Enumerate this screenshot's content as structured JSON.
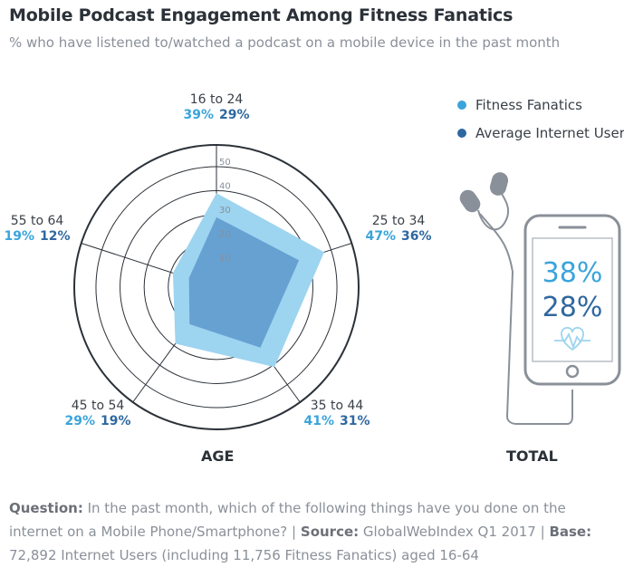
{
  "title": "Mobile Podcast Engagement Among Fitness Fanatics",
  "subtitle": "% who have listened to/watched a podcast on a mobile device in the past month",
  "chart_data": {
    "type": "radar",
    "title": "Mobile Podcast Engagement Among Fitness Fanatics",
    "subtitle": "% who have listened to/watched a podcast on a mobile device in the past month",
    "axis_title": "AGE",
    "categories": [
      "16 to 24",
      "25 to 34",
      "35 to 44",
      "45 to 54",
      "55 to 64"
    ],
    "series": [
      {
        "name": "Fitness Fanatics",
        "color": "#9dd4f0",
        "label_color": "#3aa4db",
        "values": [
          39,
          47,
          41,
          29,
          19
        ]
      },
      {
        "name": "Average Internet User",
        "color": "#5d98cc",
        "label_color": "#2f68a0",
        "values": [
          29,
          36,
          31,
          19,
          12
        ]
      }
    ],
    "rlim": [
      0,
      50
    ],
    "ticks": [
      10,
      20,
      30,
      40,
      50
    ],
    "value_labels": [
      [
        "39%",
        "29%"
      ],
      [
        "47%",
        "36%"
      ],
      [
        "41%",
        "31%"
      ],
      [
        "29%",
        "19%"
      ],
      [
        "19%",
        "12%"
      ]
    ],
    "legend_position": "top-right"
  },
  "total": {
    "label": "TOTAL",
    "fitness_fanatics": "38%",
    "average_user": "28%",
    "icon": "heartbeat-icon"
  },
  "legend": [
    {
      "label": "Fitness Fanatics",
      "color": "#3aa4db"
    },
    {
      "label": "Average Internet User",
      "color": "#2f68a0"
    }
  ],
  "footnote": {
    "question_label": "Question:",
    "question_text": "In the past month, which of the following things have you done on the internet on a Mobile Phone/Smartphone?",
    "source_label": "Source:",
    "source_text": "GlobalWebIndex Q1 2017",
    "base_label": "Base:",
    "base_text": "72,892 Internet Users (including 11,756 Fitness Fanatics) aged 16-64",
    "separator": "|"
  }
}
